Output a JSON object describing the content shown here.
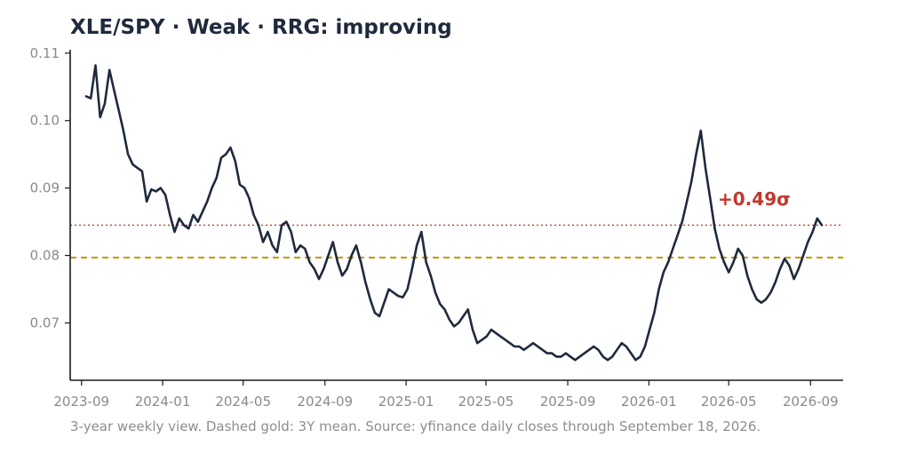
{
  "title": "XLE/SPY  ·  Weak  ·  RRG: improving",
  "footnote": "3-year weekly view. Dashed gold: 3Y mean. Source: yfinance daily closes through September 18, 2026.",
  "colors": {
    "line": "#1f2a3c",
    "mean": "#c8920a",
    "current": "#c0392b",
    "axis": "#1a1a1a",
    "tick_text": "#8a8a8a"
  },
  "chart_data": {
    "type": "line",
    "title": "XLE/SPY  ·  Weak  ·  RRG: improving",
    "x_ticks": [
      "2023-09",
      "2024-01",
      "2024-05",
      "2024-09",
      "2025-01",
      "2025-05",
      "2025-09",
      "2026-01",
      "2026-05",
      "2026-09"
    ],
    "y_ticks": [
      "0.07",
      "0.08",
      "0.09",
      "0.10",
      "0.11"
    ],
    "xlim": [
      "2023-08-15",
      "2026-10-20"
    ],
    "ylim": [
      0.0615,
      0.1105
    ],
    "grid": false,
    "legend": "none",
    "mean_value": 0.0797,
    "current_value": 0.0845,
    "annotation": "+0.49σ",
    "series": [
      {
        "points": [
          [
            "2023-09-08",
            0.1036
          ],
          [
            "2023-09-15",
            0.1033
          ],
          [
            "2023-09-22",
            0.1082
          ],
          [
            "2023-09-29",
            0.1005
          ],
          [
            "2023-10-06",
            0.1025
          ],
          [
            "2023-10-13",
            0.1075
          ],
          [
            "2023-10-20",
            0.1045
          ],
          [
            "2023-10-27",
            0.1015
          ],
          [
            "2023-11-03",
            0.0985
          ],
          [
            "2023-11-10",
            0.095
          ],
          [
            "2023-11-17",
            0.0935
          ],
          [
            "2023-11-24",
            0.093
          ],
          [
            "2023-12-01",
            0.0925
          ],
          [
            "2023-12-08",
            0.088
          ],
          [
            "2023-12-15",
            0.0898
          ],
          [
            "2023-12-22",
            0.0895
          ],
          [
            "2023-12-29",
            0.09
          ],
          [
            "2024-01-05",
            0.089
          ],
          [
            "2024-01-12",
            0.086
          ],
          [
            "2024-01-19",
            0.0835
          ],
          [
            "2024-01-26",
            0.0855
          ],
          [
            "2024-02-02",
            0.0845
          ],
          [
            "2024-02-09",
            0.084
          ],
          [
            "2024-02-16",
            0.086
          ],
          [
            "2024-02-23",
            0.085
          ],
          [
            "2024-03-01",
            0.0865
          ],
          [
            "2024-03-08",
            0.088
          ],
          [
            "2024-03-15",
            0.09
          ],
          [
            "2024-03-22",
            0.0915
          ],
          [
            "2024-03-29",
            0.0945
          ],
          [
            "2024-04-05",
            0.095
          ],
          [
            "2024-04-12",
            0.096
          ],
          [
            "2024-04-19",
            0.094
          ],
          [
            "2024-04-26",
            0.0905
          ],
          [
            "2024-05-03",
            0.09
          ],
          [
            "2024-05-10",
            0.0885
          ],
          [
            "2024-05-17",
            0.086
          ],
          [
            "2024-05-24",
            0.0845
          ],
          [
            "2024-05-31",
            0.082
          ],
          [
            "2024-06-07",
            0.0835
          ],
          [
            "2024-06-14",
            0.0815
          ],
          [
            "2024-06-21",
            0.0805
          ],
          [
            "2024-06-28",
            0.0845
          ],
          [
            "2024-07-05",
            0.085
          ],
          [
            "2024-07-12",
            0.0835
          ],
          [
            "2024-07-19",
            0.0805
          ],
          [
            "2024-07-26",
            0.0815
          ],
          [
            "2024-08-02",
            0.081
          ],
          [
            "2024-08-09",
            0.079
          ],
          [
            "2024-08-16",
            0.078
          ],
          [
            "2024-08-23",
            0.0765
          ],
          [
            "2024-08-30",
            0.078
          ],
          [
            "2024-09-06",
            0.08
          ],
          [
            "2024-09-13",
            0.082
          ],
          [
            "2024-09-20",
            0.079
          ],
          [
            "2024-09-27",
            0.077
          ],
          [
            "2024-10-04",
            0.078
          ],
          [
            "2024-10-11",
            0.08
          ],
          [
            "2024-10-18",
            0.0815
          ],
          [
            "2024-10-25",
            0.079
          ],
          [
            "2024-11-01",
            0.076
          ],
          [
            "2024-11-08",
            0.0735
          ],
          [
            "2024-11-15",
            0.0715
          ],
          [
            "2024-11-22",
            0.071
          ],
          [
            "2024-11-29",
            0.073
          ],
          [
            "2024-12-06",
            0.075
          ],
          [
            "2024-12-13",
            0.0745
          ],
          [
            "2024-12-20",
            0.074
          ],
          [
            "2024-12-27",
            0.0738
          ],
          [
            "2025-01-03",
            0.075
          ],
          [
            "2025-01-10",
            0.078
          ],
          [
            "2025-01-17",
            0.0815
          ],
          [
            "2025-01-24",
            0.0835
          ],
          [
            "2025-01-31",
            0.079
          ],
          [
            "2025-02-07",
            0.077
          ],
          [
            "2025-02-14",
            0.0745
          ],
          [
            "2025-02-21",
            0.0728
          ],
          [
            "2025-02-28",
            0.072
          ],
          [
            "2025-03-07",
            0.0705
          ],
          [
            "2025-03-14",
            0.0695
          ],
          [
            "2025-03-21",
            0.07
          ],
          [
            "2025-03-28",
            0.071
          ],
          [
            "2025-04-04",
            0.072
          ],
          [
            "2025-04-11",
            0.069
          ],
          [
            "2025-04-18",
            0.067
          ],
          [
            "2025-04-25",
            0.0675
          ],
          [
            "2025-05-02",
            0.068
          ],
          [
            "2025-05-09",
            0.069
          ],
          [
            "2025-05-16",
            0.0685
          ],
          [
            "2025-05-23",
            0.068
          ],
          [
            "2025-05-30",
            0.0675
          ],
          [
            "2025-06-06",
            0.067
          ],
          [
            "2025-06-13",
            0.0665
          ],
          [
            "2025-06-20",
            0.0665
          ],
          [
            "2025-06-27",
            0.066
          ],
          [
            "2025-07-04",
            0.0665
          ],
          [
            "2025-07-11",
            0.067
          ],
          [
            "2025-07-18",
            0.0665
          ],
          [
            "2025-07-25",
            0.066
          ],
          [
            "2025-08-01",
            0.0655
          ],
          [
            "2025-08-08",
            0.0655
          ],
          [
            "2025-08-15",
            0.065
          ],
          [
            "2025-08-22",
            0.065
          ],
          [
            "2025-08-29",
            0.0655
          ],
          [
            "2025-09-05",
            0.065
          ],
          [
            "2025-09-12",
            0.0645
          ],
          [
            "2025-09-19",
            0.065
          ],
          [
            "2025-09-26",
            0.0655
          ],
          [
            "2025-10-03",
            0.066
          ],
          [
            "2025-10-10",
            0.0665
          ],
          [
            "2025-10-17",
            0.066
          ],
          [
            "2025-10-24",
            0.065
          ],
          [
            "2025-10-31",
            0.0645
          ],
          [
            "2025-11-07",
            0.065
          ],
          [
            "2025-11-14",
            0.066
          ],
          [
            "2025-11-21",
            0.067
          ],
          [
            "2025-11-28",
            0.0665
          ],
          [
            "2025-12-05",
            0.0655
          ],
          [
            "2025-12-12",
            0.0645
          ],
          [
            "2025-12-19",
            0.065
          ],
          [
            "2025-12-26",
            0.0665
          ],
          [
            "2026-01-02",
            0.069
          ],
          [
            "2026-01-09",
            0.0715
          ],
          [
            "2026-01-16",
            0.075
          ],
          [
            "2026-01-23",
            0.0775
          ],
          [
            "2026-01-30",
            0.079
          ],
          [
            "2026-02-06",
            0.081
          ],
          [
            "2026-02-13",
            0.083
          ],
          [
            "2026-02-20",
            0.085
          ],
          [
            "2026-02-27",
            0.088
          ],
          [
            "2026-03-06",
            0.091
          ],
          [
            "2026-03-13",
            0.095
          ],
          [
            "2026-03-20",
            0.0985
          ],
          [
            "2026-03-27",
            0.093
          ],
          [
            "2026-04-03",
            0.0885
          ],
          [
            "2026-04-10",
            0.084
          ],
          [
            "2026-04-17",
            0.081
          ],
          [
            "2026-04-24",
            0.079
          ],
          [
            "2026-05-01",
            0.0775
          ],
          [
            "2026-05-08",
            0.079
          ],
          [
            "2026-05-15",
            0.081
          ],
          [
            "2026-05-22",
            0.08
          ],
          [
            "2026-05-29",
            0.077
          ],
          [
            "2026-06-05",
            0.075
          ],
          [
            "2026-06-12",
            0.0735
          ],
          [
            "2026-06-19",
            0.073
          ],
          [
            "2026-06-26",
            0.0735
          ],
          [
            "2026-07-03",
            0.0745
          ],
          [
            "2026-07-10",
            0.076
          ],
          [
            "2026-07-17",
            0.078
          ],
          [
            "2026-07-24",
            0.0795
          ],
          [
            "2026-07-31",
            0.0785
          ],
          [
            "2026-08-07",
            0.0765
          ],
          [
            "2026-08-14",
            0.078
          ],
          [
            "2026-08-21",
            0.08
          ],
          [
            "2026-08-28",
            0.082
          ],
          [
            "2026-09-04",
            0.0835
          ],
          [
            "2026-09-11",
            0.0855
          ],
          [
            "2026-09-18",
            0.0845
          ]
        ]
      }
    ]
  }
}
